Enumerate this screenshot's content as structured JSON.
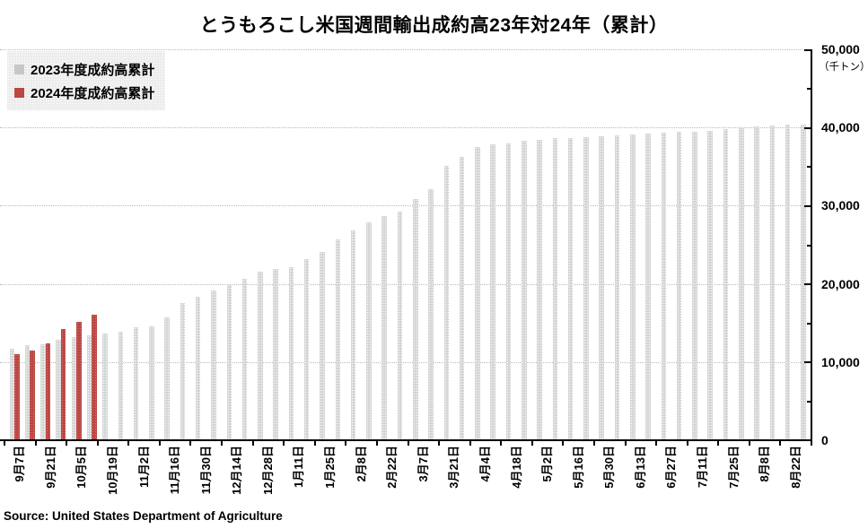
{
  "title": "とうもろこし米国週間輸出成約高23年対24年（累計）",
  "source": "Source: United States Department of Agriculture",
  "legend": {
    "items": [
      {
        "label": "2023年度成約高累計",
        "color": "#c7c7c7"
      },
      {
        "label": "2024年度成約高累計",
        "color": "#bc4843"
      }
    ]
  },
  "y_axis": {
    "unit": "（千トン）",
    "tick_labels": [
      "0",
      "10,000",
      "20,000",
      "30,000",
      "40,000",
      "50,000"
    ]
  },
  "chart_data": {
    "type": "bar",
    "title": "とうもろこし米国週間輸出成約高23年対24年（累計）",
    "ylabel": "（千トン）",
    "ylim": [
      0,
      50000
    ],
    "y_major_step": 10000,
    "y_minor_step": 5000,
    "grid": "horizontal dotted lines at 10,000 steps",
    "legend_position": "top-left",
    "weeks_per_tick_label": 2,
    "x_tick_labels": [
      "9月7日",
      "9月21日",
      "10月5日",
      "10月19日",
      "11月2日",
      "11月16日",
      "11月30日",
      "12月14日",
      "12月28日",
      "1月11日",
      "1月25日",
      "2月8日",
      "2月22日",
      "3月7日",
      "3月21日",
      "4月4日",
      "4月18日",
      "5月2日",
      "5月16日",
      "5月30日",
      "6月13日",
      "6月27日",
      "7月11日",
      "7月25日",
      "8月8日",
      "8月22日"
    ],
    "series": [
      {
        "name": "2023年度成約高累計",
        "color": "#d7d7d7",
        "values": [
          11700,
          12200,
          12300,
          12850,
          13150,
          13400,
          13600,
          13900,
          14400,
          14600,
          15700,
          17600,
          18400,
          19200,
          20000,
          20650,
          21600,
          21900,
          22100,
          23150,
          24100,
          25650,
          26800,
          27900,
          28700,
          29300,
          30800,
          32100,
          35100,
          36200,
          37500,
          37900,
          38000,
          38300,
          38400,
          38600,
          38700,
          38800,
          38900,
          39000,
          39100,
          39200,
          39300,
          39400,
          39500,
          39600,
          39800,
          39900,
          40100,
          40300,
          40400,
          40400
        ]
      },
      {
        "name": "2024年度成約高累計",
        "color": "#bc4843",
        "values": [
          11000,
          11500,
          12400,
          14200,
          15100,
          16000
        ]
      }
    ]
  }
}
